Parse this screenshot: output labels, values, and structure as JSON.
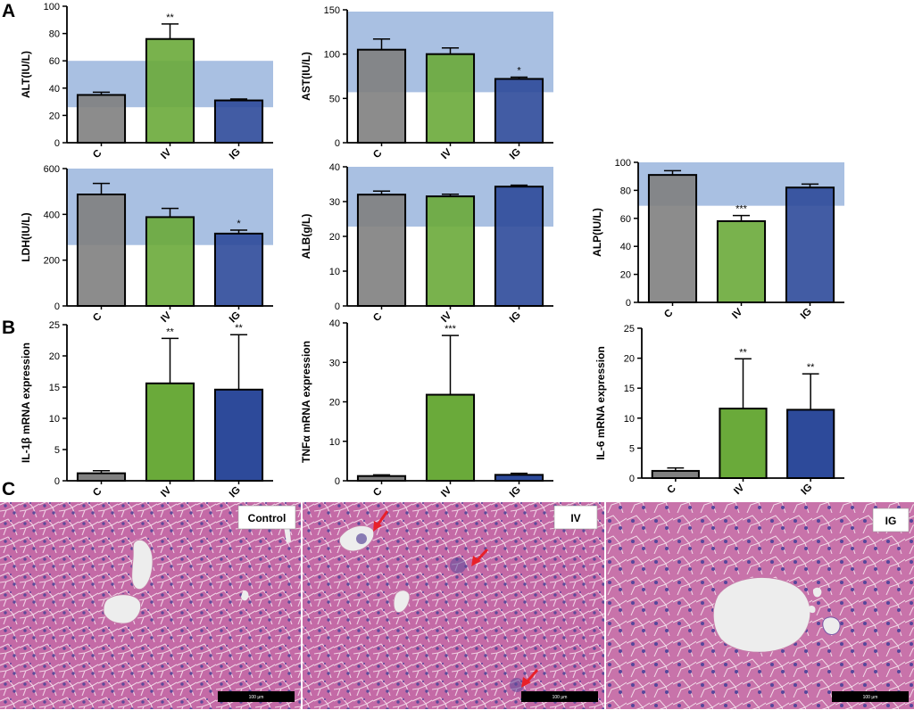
{
  "panel_letters": [
    "A",
    "B",
    "C"
  ],
  "colors": {
    "C": "#808080",
    "IV": "#6aaa3a",
    "IG": "#2d4a9a",
    "reference_band": "#a9c0e2"
  },
  "chart_data": [
    {
      "type": "bar",
      "ylabel": "ALT(IU/L)",
      "categories": [
        "C",
        "IV",
        "IG"
      ],
      "values": [
        35,
        76,
        31
      ],
      "errors": [
        2,
        11,
        1
      ],
      "significance": [
        "",
        "**",
        ""
      ],
      "ylim": [
        0,
        100
      ],
      "yticks": [
        0,
        20,
        40,
        60,
        80,
        100
      ],
      "reference_range": [
        26,
        60
      ]
    },
    {
      "type": "bar",
      "ylabel": "AST(IU/L)",
      "categories": [
        "C",
        "IV",
        "IG"
      ],
      "values": [
        105,
        100,
        72
      ],
      "errors": [
        12,
        7,
        2
      ],
      "significance": [
        "",
        "",
        "*"
      ],
      "ylim": [
        0,
        150
      ],
      "yticks": [
        0,
        50,
        100,
        150
      ],
      "reference_range": [
        57,
        148
      ]
    },
    {
      "type": "bar",
      "ylabel": "LDH(IU/L)",
      "categories": [
        "C",
        "IV",
        "IG"
      ],
      "values": [
        487,
        388,
        316
      ],
      "errors": [
        48,
        38,
        15
      ],
      "significance": [
        "",
        "",
        "*"
      ],
      "ylim": [
        0,
        600
      ],
      "yticks": [
        0,
        200,
        400,
        600
      ],
      "reference_range": [
        266,
        600
      ]
    },
    {
      "type": "bar",
      "ylabel": "ALB(g/L)",
      "categories": [
        "C",
        "IV",
        "IG"
      ],
      "values": [
        32,
        31.5,
        34.3
      ],
      "errors": [
        1,
        0.6,
        0.4
      ],
      "significance": [
        "",
        "",
        ""
      ],
      "ylim": [
        0,
        40
      ],
      "yticks": [
        0,
        10,
        20,
        30,
        40
      ],
      "reference_range": [
        22.8,
        40
      ]
    },
    {
      "type": "bar",
      "ylabel": "ALP(IU/L)",
      "categories": [
        "C",
        "IV",
        "IG"
      ],
      "values": [
        91,
        58,
        82
      ],
      "errors": [
        3,
        4,
        2.5
      ],
      "significance": [
        "",
        "***",
        ""
      ],
      "ylim": [
        0,
        100
      ],
      "yticks": [
        0,
        20,
        40,
        60,
        80,
        100
      ],
      "reference_range": [
        69,
        100
      ]
    },
    {
      "type": "bar",
      "ylabel": "IL-1β mRNA expression",
      "categories": [
        "C",
        "IV",
        "IG"
      ],
      "values": [
        1.2,
        15.6,
        14.6
      ],
      "errors": [
        0.4,
        7.2,
        8.8
      ],
      "significance": [
        "",
        "**",
        "**"
      ],
      "ylim": [
        0,
        25
      ],
      "yticks": [
        0,
        5,
        10,
        15,
        20,
        25
      ]
    },
    {
      "type": "bar",
      "ylabel": "TNFα mRNA expression",
      "categories": [
        "C",
        "IV",
        "IG"
      ],
      "values": [
        1.2,
        21.8,
        1.5
      ],
      "errors": [
        0.3,
        15,
        0.4
      ],
      "significance": [
        "",
        "***",
        ""
      ],
      "ylim": [
        0,
        40
      ],
      "yticks": [
        0,
        10,
        20,
        30,
        40
      ]
    },
    {
      "type": "bar",
      "ylabel": "IL-6 mRNA expression",
      "categories": [
        "C",
        "IV",
        "IG"
      ],
      "values": [
        1.2,
        11.6,
        11.4
      ],
      "errors": [
        0.5,
        8.3,
        6
      ],
      "significance": [
        "",
        "**",
        "**"
      ],
      "ylim": [
        0,
        25
      ],
      "yticks": [
        0,
        5,
        10,
        15,
        20,
        25
      ]
    }
  ],
  "histology": [
    {
      "label": "Control",
      "scale_bar": "100 μm"
    },
    {
      "label": "IV",
      "scale_bar": "100 μm"
    },
    {
      "label": "IG",
      "scale_bar": "100 μm"
    }
  ]
}
